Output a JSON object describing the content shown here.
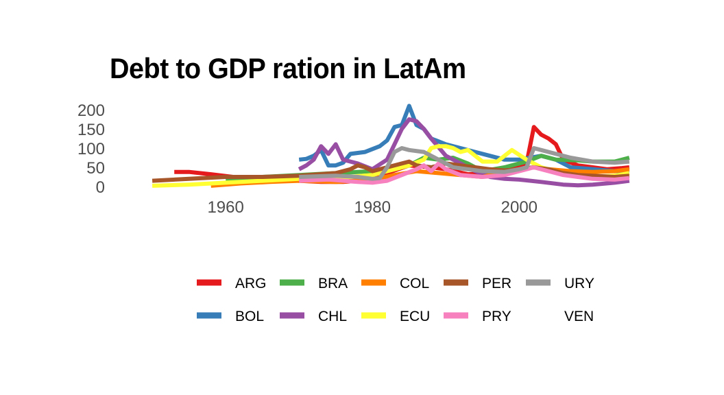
{
  "chart_data": {
    "type": "line",
    "title": "Debt to GDP ration in LatAm",
    "xlabel": "",
    "ylabel": "",
    "xlim": [
      1947,
      2018
    ],
    "ylim": [
      0,
      200
    ],
    "x_ticks": [
      1960,
      1980,
      2000
    ],
    "y_ticks": [
      0,
      50,
      100,
      150,
      200
    ],
    "grid": false,
    "legend_position": "bottom",
    "series": [
      {
        "name": "ARG",
        "color": "#e41a1c",
        "points": [
          [
            1953,
            38
          ],
          [
            1955,
            38
          ],
          [
            1958,
            32
          ],
          [
            1961,
            25
          ],
          [
            1964,
            22
          ],
          [
            1967,
            20
          ],
          [
            1970,
            15
          ],
          [
            1973,
            12
          ],
          [
            1976,
            12
          ],
          [
            1980,
            18
          ],
          [
            1982,
            35
          ],
          [
            1985,
            55
          ],
          [
            1988,
            50
          ],
          [
            1990,
            45
          ],
          [
            1993,
            32
          ],
          [
            1996,
            35
          ],
          [
            1999,
            45
          ],
          [
            2001,
            60
          ],
          [
            2002,
            155
          ],
          [
            2003,
            135
          ],
          [
            2004,
            125
          ],
          [
            2005,
            110
          ],
          [
            2006,
            70
          ],
          [
            2008,
            55
          ],
          [
            2010,
            50
          ],
          [
            2012,
            45
          ],
          [
            2014,
            48
          ],
          [
            2015,
            50
          ]
        ]
      },
      {
        "name": "BOL",
        "color": "#377eb8",
        "points": [
          [
            1970,
            70
          ],
          [
            1971,
            72
          ],
          [
            1972,
            80
          ],
          [
            1973,
            95
          ],
          [
            1974,
            55
          ],
          [
            1975,
            55
          ],
          [
            1976,
            62
          ],
          [
            1977,
            85
          ],
          [
            1979,
            90
          ],
          [
            1981,
            105
          ],
          [
            1982,
            120
          ],
          [
            1983,
            155
          ],
          [
            1984,
            160
          ],
          [
            1985,
            210
          ],
          [
            1986,
            160
          ],
          [
            1987,
            150
          ],
          [
            1988,
            125
          ],
          [
            1990,
            110
          ],
          [
            1992,
            100
          ],
          [
            1994,
            90
          ],
          [
            1996,
            80
          ],
          [
            1998,
            70
          ],
          [
            2000,
            70
          ],
          [
            2003,
            80
          ],
          [
            2005,
            70
          ],
          [
            2007,
            50
          ],
          [
            2010,
            45
          ],
          [
            2013,
            40
          ],
          [
            2015,
            40
          ]
        ]
      },
      {
        "name": "BRA",
        "color": "#4daf4a",
        "points": [
          [
            1960,
            20
          ],
          [
            1965,
            25
          ],
          [
            1970,
            30
          ],
          [
            1975,
            35
          ],
          [
            1980,
            40
          ],
          [
            1983,
            45
          ],
          [
            1985,
            55
          ],
          [
            1987,
            75
          ],
          [
            1989,
            70
          ],
          [
            1991,
            75
          ],
          [
            1993,
            60
          ],
          [
            1995,
            40
          ],
          [
            1998,
            50
          ],
          [
            2001,
            65
          ],
          [
            2003,
            80
          ],
          [
            2005,
            70
          ],
          [
            2008,
            68
          ],
          [
            2010,
            65
          ],
          [
            2013,
            65
          ],
          [
            2015,
            75
          ]
        ]
      },
      {
        "name": "CHL",
        "color": "#984ea3",
        "points": [
          [
            1970,
            45
          ],
          [
            1971,
            55
          ],
          [
            1972,
            70
          ],
          [
            1973,
            105
          ],
          [
            1974,
            85
          ],
          [
            1975,
            110
          ],
          [
            1976,
            70
          ],
          [
            1978,
            60
          ],
          [
            1980,
            45
          ],
          [
            1982,
            70
          ],
          [
            1983,
            110
          ],
          [
            1984,
            150
          ],
          [
            1985,
            175
          ],
          [
            1986,
            170
          ],
          [
            1987,
            150
          ],
          [
            1988,
            125
          ],
          [
            1990,
            80
          ],
          [
            1992,
            60
          ],
          [
            1994,
            40
          ],
          [
            1996,
            25
          ],
          [
            1998,
            20
          ],
          [
            2000,
            18
          ],
          [
            2003,
            12
          ],
          [
            2006,
            5
          ],
          [
            2008,
            3
          ],
          [
            2010,
            5
          ],
          [
            2013,
            10
          ],
          [
            2015,
            15
          ]
        ]
      },
      {
        "name": "COL",
        "color": "#ff7f00",
        "points": [
          [
            1958,
            2
          ],
          [
            1962,
            8
          ],
          [
            1966,
            12
          ],
          [
            1970,
            15
          ],
          [
            1975,
            12
          ],
          [
            1980,
            18
          ],
          [
            1983,
            30
          ],
          [
            1986,
            40
          ],
          [
            1989,
            35
          ],
          [
            1992,
            30
          ],
          [
            1995,
            25
          ],
          [
            1998,
            40
          ],
          [
            2000,
            45
          ],
          [
            2002,
            50
          ],
          [
            2004,
            45
          ],
          [
            2007,
            40
          ],
          [
            2010,
            38
          ],
          [
            2013,
            40
          ],
          [
            2015,
            45
          ]
        ]
      },
      {
        "name": "ECU",
        "color": "#ffff33",
        "points": [
          [
            1950,
            2
          ],
          [
            1955,
            5
          ],
          [
            1960,
            10
          ],
          [
            1965,
            15
          ],
          [
            1970,
            20
          ],
          [
            1975,
            22
          ],
          [
            1980,
            30
          ],
          [
            1983,
            45
          ],
          [
            1985,
            55
          ],
          [
            1987,
            70
          ],
          [
            1988,
            100
          ],
          [
            1989,
            105
          ],
          [
            1990,
            105
          ],
          [
            1991,
            100
          ],
          [
            1992,
            90
          ],
          [
            1993,
            95
          ],
          [
            1994,
            80
          ],
          [
            1995,
            65
          ],
          [
            1997,
            65
          ],
          [
            1999,
            95
          ],
          [
            2001,
            70
          ],
          [
            2003,
            50
          ],
          [
            2005,
            40
          ],
          [
            2008,
            25
          ],
          [
            2010,
            25
          ],
          [
            2013,
            28
          ],
          [
            2015,
            35
          ]
        ]
      },
      {
        "name": "PER",
        "color": "#a65628",
        "points": [
          [
            1950,
            15
          ],
          [
            1955,
            20
          ],
          [
            1960,
            25
          ],
          [
            1965,
            25
          ],
          [
            1970,
            28
          ],
          [
            1975,
            35
          ],
          [
            1977,
            45
          ],
          [
            1978,
            55
          ],
          [
            1979,
            50
          ],
          [
            1980,
            40
          ],
          [
            1982,
            50
          ],
          [
            1984,
            60
          ],
          [
            1985,
            65
          ],
          [
            1986,
            55
          ],
          [
            1988,
            50
          ],
          [
            1990,
            60
          ],
          [
            1992,
            55
          ],
          [
            1994,
            50
          ],
          [
            1996,
            45
          ],
          [
            1998,
            42
          ],
          [
            2000,
            45
          ],
          [
            2002,
            50
          ],
          [
            2004,
            45
          ],
          [
            2006,
            35
          ],
          [
            2008,
            30
          ],
          [
            2010,
            28
          ],
          [
            2013,
            25
          ],
          [
            2015,
            28
          ]
        ]
      },
      {
        "name": "PRY",
        "color": "#f781bf",
        "points": [
          [
            1970,
            15
          ],
          [
            1974,
            18
          ],
          [
            1978,
            12
          ],
          [
            1980,
            10
          ],
          [
            1982,
            15
          ],
          [
            1984,
            30
          ],
          [
            1986,
            45
          ],
          [
            1987,
            55
          ],
          [
            1988,
            40
          ],
          [
            1989,
            60
          ],
          [
            1990,
            45
          ],
          [
            1992,
            30
          ],
          [
            1995,
            25
          ],
          [
            1998,
            30
          ],
          [
            2000,
            40
          ],
          [
            2002,
            50
          ],
          [
            2004,
            40
          ],
          [
            2006,
            30
          ],
          [
            2008,
            25
          ],
          [
            2010,
            20
          ],
          [
            2013,
            18
          ],
          [
            2015,
            22
          ]
        ]
      },
      {
        "name": "URY",
        "color": "#999999",
        "points": [
          [
            1970,
            25
          ],
          [
            1975,
            28
          ],
          [
            1978,
            25
          ],
          [
            1980,
            20
          ],
          [
            1981,
            22
          ],
          [
            1982,
            50
          ],
          [
            1983,
            90
          ],
          [
            1984,
            100
          ],
          [
            1985,
            95
          ],
          [
            1987,
            90
          ],
          [
            1989,
            70
          ],
          [
            1991,
            50
          ],
          [
            1993,
            45
          ],
          [
            1995,
            40
          ],
          [
            1998,
            38
          ],
          [
            2000,
            45
          ],
          [
            2001,
            50
          ],
          [
            2002,
            100
          ],
          [
            2003,
            95
          ],
          [
            2005,
            85
          ],
          [
            2007,
            75
          ],
          [
            2010,
            65
          ],
          [
            2013,
            62
          ],
          [
            2015,
            65
          ]
        ]
      },
      {
        "name": "VEN",
        "color": "#ffffff",
        "points": []
      }
    ]
  }
}
